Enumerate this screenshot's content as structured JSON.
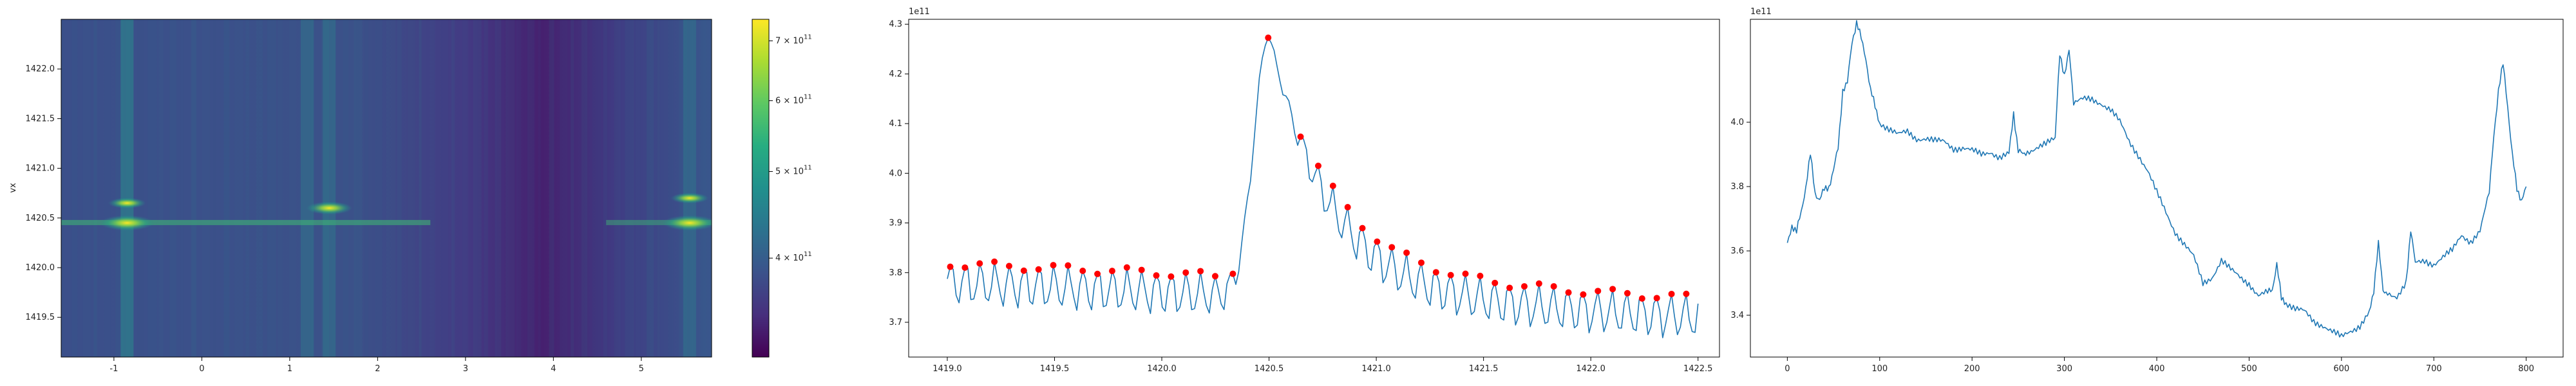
{
  "chart_data": [
    {
      "type": "heatmap",
      "title": "",
      "xlabel": "",
      "ylabel": "vx",
      "xlim": [
        -1.6,
        5.8
      ],
      "ylim": [
        1419.1,
        1422.5
      ],
      "xticks": [
        "-1",
        "0",
        "1",
        "2",
        "3",
        "4",
        "5"
      ],
      "yticks": [
        "1419.5",
        "1420.0",
        "1420.5",
        "1421.0",
        "1421.5",
        "1422.0"
      ],
      "colormap": "viridis",
      "colorbar": {
        "scale": "log",
        "range": [
          310000000000.0,
          740000000000.0
        ],
        "ticks": [
          {
            "value": 400000000000.0,
            "mantissa": "4",
            "exp": "11"
          },
          {
            "value": 500000000000.0,
            "mantissa": "5",
            "exp": "11"
          },
          {
            "value": 600000000000.0,
            "mantissa": "6",
            "exp": "11"
          },
          {
            "value": 700000000000.0,
            "mantissa": "7",
            "exp": "11"
          }
        ],
        "base_label": "× 10"
      },
      "bright_columns_x": [
        -0.85,
        -0.85,
        1.2,
        1.45,
        5.55
      ],
      "hot_spots": [
        {
          "x": -0.85,
          "y": 1420.45,
          "level": 1.0
        },
        {
          "x": -0.85,
          "y": 1420.65,
          "level": 0.7
        },
        {
          "x": 1.45,
          "y": 1420.6,
          "level": 0.85
        },
        {
          "x": 5.55,
          "y": 1420.45,
          "level": 1.0
        },
        {
          "x": 5.55,
          "y": 1420.7,
          "level": 0.7
        }
      ]
    },
    {
      "type": "line",
      "title": "",
      "xlabel": "",
      "ylabel": "",
      "offset_label": "1e11",
      "xlim": [
        1418.82,
        1422.6
      ],
      "ylim": [
        3.63,
        4.31
      ],
      "xticks": [
        "1419.0",
        "1419.5",
        "1420.0",
        "1420.5",
        "1421.0",
        "1421.5",
        "1422.0",
        "1422.5"
      ],
      "yticks": [
        "3.7",
        "3.8",
        "3.9",
        "4.0",
        "4.1",
        "4.2",
        "4.3"
      ],
      "line_color": "#1f77b4",
      "marker_color": "#ff0000",
      "x_range": [
        1419.0,
        1422.5
      ],
      "num_points": 256,
      "peak": {
        "x": 1420.5,
        "y": 4.28
      },
      "baseline": {
        "left": 3.78,
        "right": 3.71
      },
      "oscillation_period": 0.0685,
      "oscillation_amplitude": 0.04
    },
    {
      "type": "line",
      "title": "",
      "xlabel": "",
      "ylabel": "",
      "offset_label": "1e11",
      "xlim": [
        -40,
        840
      ],
      "ylim": [
        3.27,
        4.32
      ],
      "xticks": [
        "0",
        "100",
        "200",
        "300",
        "400",
        "500",
        "600",
        "700",
        "800"
      ],
      "yticks": [
        "3.4",
        "3.6",
        "3.8",
        "4.0"
      ],
      "line_color": "#1f77b4",
      "x": [
        0,
        5,
        10,
        15,
        20,
        25,
        30,
        35,
        40,
        45,
        50,
        55,
        60,
        65,
        70,
        75,
        80,
        85,
        90,
        95,
        100,
        110,
        120,
        130,
        140,
        150,
        160,
        170,
        180,
        190,
        200,
        210,
        220,
        230,
        240,
        245,
        250,
        255,
        260,
        270,
        280,
        290,
        295,
        300,
        305,
        310,
        320,
        330,
        340,
        350,
        360,
        370,
        380,
        390,
        400,
        410,
        420,
        430,
        440,
        450,
        460,
        470,
        480,
        490,
        500,
        510,
        520,
        525,
        530,
        535,
        540,
        550,
        560,
        570,
        580,
        590,
        600,
        610,
        620,
        630,
        635,
        640,
        645,
        650,
        660,
        670,
        675,
        680,
        690,
        700,
        710,
        720,
        730,
        740,
        750,
        760,
        765,
        770,
        775,
        780,
        785,
        790,
        795,
        800
      ],
      "y": [
        3.62,
        3.68,
        3.66,
        3.72,
        3.8,
        3.9,
        3.78,
        3.76,
        3.79,
        3.8,
        3.85,
        3.92,
        4.1,
        4.12,
        4.25,
        4.31,
        4.26,
        4.2,
        4.1,
        4.05,
        4.0,
        3.98,
        3.96,
        3.97,
        3.95,
        3.95,
        3.94,
        3.94,
        3.92,
        3.92,
        3.91,
        3.9,
        3.91,
        3.89,
        3.9,
        4.03,
        3.91,
        3.9,
        3.91,
        3.92,
        3.93,
        3.95,
        4.21,
        4.15,
        4.22,
        4.06,
        4.07,
        4.07,
        4.06,
        4.04,
        4.0,
        3.94,
        3.9,
        3.85,
        3.78,
        3.72,
        3.66,
        3.62,
        3.58,
        3.5,
        3.52,
        3.57,
        3.54,
        3.52,
        3.5,
        3.46,
        3.47,
        3.48,
        3.56,
        3.45,
        3.44,
        3.42,
        3.41,
        3.38,
        3.37,
        3.35,
        3.33,
        3.35,
        3.37,
        3.41,
        3.48,
        3.62,
        3.48,
        3.47,
        3.46,
        3.5,
        3.67,
        3.56,
        3.57,
        3.56,
        3.58,
        3.6,
        3.65,
        3.63,
        3.66,
        3.78,
        3.96,
        4.1,
        4.18,
        4.05,
        3.9,
        3.79,
        3.76,
        3.8
      ]
    }
  ]
}
